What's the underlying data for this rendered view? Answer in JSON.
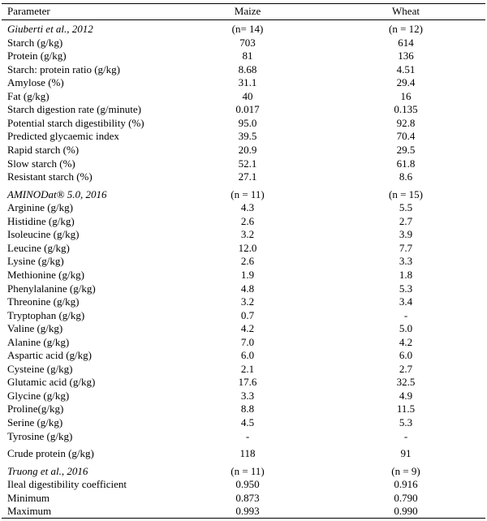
{
  "header": {
    "parameter": "Parameter",
    "maize": "Maize",
    "wheat": "Wheat"
  },
  "rows": [
    {
      "type": "section",
      "label": "Giuberti et al., 2012",
      "maize": "(n= 14)",
      "wheat": "(n = 12)"
    },
    {
      "type": "data",
      "label": "Starch (g/kg)",
      "maize": "703",
      "wheat": "614"
    },
    {
      "type": "data",
      "label": "Protein (g/kg)",
      "maize": "81",
      "wheat": "136"
    },
    {
      "type": "data",
      "label": "Starch: protein ratio (g/kg)",
      "maize": "8.68",
      "wheat": "4.51"
    },
    {
      "type": "data",
      "label": "Amylose (%)",
      "maize": "31.1",
      "wheat": "29.4"
    },
    {
      "type": "data",
      "label": "Fat (g/kg)",
      "maize": "40",
      "wheat": "16"
    },
    {
      "type": "data",
      "label": "Starch digestion rate (g/minute)",
      "maize": "0.017",
      "wheat": "0.135"
    },
    {
      "type": "data",
      "label": "Potential starch digestibility (%)",
      "maize": "95.0",
      "wheat": "92.8"
    },
    {
      "type": "data",
      "label": "Predicted glycaemic index",
      "maize": "39.5",
      "wheat": "70.4"
    },
    {
      "type": "data",
      "label": "Rapid starch (%)",
      "maize": "20.9",
      "wheat": "29.5"
    },
    {
      "type": "data",
      "label": "Slow starch (%)",
      "maize": "52.1",
      "wheat": "61.8"
    },
    {
      "type": "data",
      "label": "Resistant starch (%)",
      "maize": "27.1",
      "wheat": "8.6"
    },
    {
      "type": "section",
      "label": "AMINODat® 5.0, 2016",
      "maize": "(n = 11)",
      "wheat": "(n = 15)"
    },
    {
      "type": "data",
      "label": "Arginine (g/kg)",
      "maize": "4.3",
      "wheat": "5.5"
    },
    {
      "type": "data",
      "label": "Histidine (g/kg)",
      "maize": "2.6",
      "wheat": "2.7"
    },
    {
      "type": "data",
      "label": "Isoleucine (g/kg)",
      "maize": "3.2",
      "wheat": "3.9"
    },
    {
      "type": "data",
      "label": "Leucine (g/kg)",
      "maize": "12.0",
      "wheat": "7.7"
    },
    {
      "type": "data",
      "label": "Lysine (g/kg)",
      "maize": "2.6",
      "wheat": "3.3"
    },
    {
      "type": "data",
      "label": "Methionine (g/kg)",
      "maize": "1.9",
      "wheat": "1.8"
    },
    {
      "type": "data",
      "label": "Phenylalanine (g/kg)",
      "maize": "4.8",
      "wheat": "5.3"
    },
    {
      "type": "data",
      "label": "Threonine (g/kg)",
      "maize": "3.2",
      "wheat": "3.4"
    },
    {
      "type": "data",
      "label": "Tryptophan (g/kg)",
      "maize": "0.7",
      "wheat": "-"
    },
    {
      "type": "data",
      "label": "Valine (g/kg)",
      "maize": "4.2",
      "wheat": "5.0"
    },
    {
      "type": "data",
      "label": "Alanine (g/kg)",
      "maize": "7.0",
      "wheat": "4.2"
    },
    {
      "type": "data",
      "label": "Aspartic acid (g/kg)",
      "maize": "6.0",
      "wheat": "6.0"
    },
    {
      "type": "data",
      "label": "Cysteine (g/kg)",
      "maize": "2.1",
      "wheat": "2.7"
    },
    {
      "type": "data",
      "label": "Glutamic acid (g/kg)",
      "maize": "17.6",
      "wheat": "32.5"
    },
    {
      "type": "data",
      "label": "Glycine (g/kg)",
      "maize": "3.3",
      "wheat": "4.9"
    },
    {
      "type": "data",
      "label": "Proline(g/kg)",
      "maize": "8.8",
      "wheat": "11.5"
    },
    {
      "type": "data",
      "label": "Serine (g/kg)",
      "maize": "4.5",
      "wheat": "5.3"
    },
    {
      "type": "data",
      "label": "Tyrosine (g/kg)",
      "maize": "-",
      "wheat": "-"
    },
    {
      "type": "data",
      "label": "Crude protein (g/kg)",
      "maize": "118",
      "wheat": "91"
    },
    {
      "type": "section",
      "label": "Truong et al., 2016",
      "maize": "(n = 11)",
      "wheat": "(n = 9)"
    },
    {
      "type": "data",
      "label": "Ileal digestibility coefficient",
      "maize": "0.950",
      "wheat": "0.916"
    },
    {
      "type": "data",
      "label": "Minimum",
      "maize": "0.873",
      "wheat": "0.790"
    },
    {
      "type": "data",
      "label": "Maximum",
      "maize": "0.993",
      "wheat": "0.990"
    }
  ]
}
